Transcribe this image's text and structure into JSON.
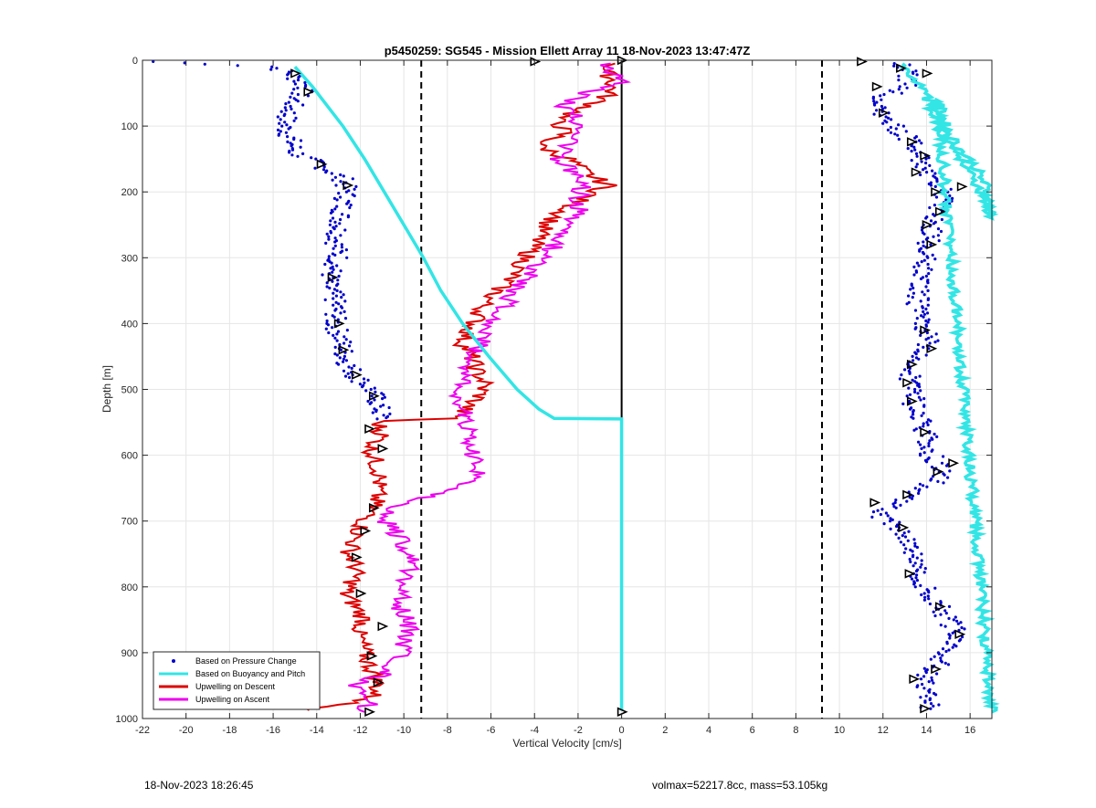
{
  "chart_data": {
    "type": "scatter",
    "title": "p5450259: SG545 - Mission Ellett Array 11 18-Nov-2023 13:47:47Z",
    "xlabel": "Vertical Velocity [cm/s]",
    "ylabel": "Depth [m]",
    "xlim": [
      -22,
      17
    ],
    "ylim": [
      0,
      1000
    ],
    "y_reversed": true,
    "grid": true,
    "x_ticks": [
      -22,
      -20,
      -18,
      -16,
      -14,
      -12,
      -10,
      -8,
      -6,
      -4,
      -2,
      0,
      2,
      4,
      6,
      8,
      10,
      12,
      14,
      16
    ],
    "y_ticks": [
      0,
      100,
      200,
      300,
      400,
      500,
      600,
      700,
      800,
      900,
      1000
    ],
    "reference_lines": [
      {
        "x": -9.2,
        "style": "dashed",
        "color": "#000000"
      },
      {
        "x": 9.2,
        "style": "dashed",
        "color": "#000000"
      },
      {
        "x": 0,
        "style": "solid",
        "color": "#000000",
        "y_range": [
          0,
          545
        ]
      }
    ],
    "legend_position": "bottom-left",
    "series": [
      {
        "name": "Based on Pressure Change",
        "style": "dots",
        "color": "#0000cc",
        "descent": {
          "depth": [
            2,
            10,
            20,
            40,
            60,
            80,
            100,
            120,
            140,
            160,
            180,
            200,
            220,
            240,
            260,
            280,
            300,
            320,
            340,
            360,
            380,
            400,
            420,
            440,
            460,
            480,
            500,
            520,
            545
          ],
          "velocity": [
            -21.5,
            -16,
            -15.2,
            -14.5,
            -15,
            -15.3,
            -15.5,
            -15.2,
            -15,
            -13.8,
            -12.8,
            -12.6,
            -12.8,
            -12.9,
            -13,
            -13.1,
            -13,
            -13.3,
            -13.5,
            -13.2,
            -13.1,
            -13.2,
            -12.9,
            -12.8,
            -12.6,
            -12.2,
            -11.5,
            -11.2,
            -11
          ]
        },
        "ascent": {
          "depth": [
            985,
            960,
            940,
            920,
            900,
            880,
            860,
            840,
            820,
            800,
            780,
            760,
            740,
            720,
            700,
            690,
            680,
            670,
            660,
            640,
            620,
            600,
            580,
            560,
            540,
            520,
            500,
            480,
            460,
            440,
            420,
            400,
            380,
            360,
            340,
            320,
            300,
            280,
            260,
            240,
            220,
            200,
            180,
            160,
            140,
            120,
            100,
            80,
            60,
            40,
            20,
            5
          ],
          "velocity": [
            14.1,
            14.1,
            13.8,
            14.5,
            14.8,
            15.6,
            15.2,
            14.8,
            14.4,
            13.9,
            13.6,
            13.5,
            13.3,
            13.1,
            12.4,
            11.6,
            12.2,
            12.8,
            13.4,
            14.4,
            14.8,
            14.2,
            14.1,
            13.9,
            13.6,
            13.4,
            13.4,
            13.2,
            13.5,
            14,
            14.1,
            13.8,
            13.6,
            13.6,
            13.7,
            13.9,
            14,
            14.1,
            14.2,
            14.3,
            14.6,
            14.9,
            14.2,
            13.8,
            13.6,
            13.2,
            12.5,
            12,
            11.8,
            13,
            13.2,
            12.8
          ]
        }
      },
      {
        "name": "Based on Buoyancy and Pitch",
        "style": "line",
        "color": "#33e5e5",
        "descent": {
          "depth": [
            10,
            40,
            100,
            150,
            200,
            250,
            300,
            350,
            400,
            450,
            500,
            530,
            544,
            545,
            600,
            700,
            800,
            900,
            988
          ],
          "velocity": [
            -15,
            -14.2,
            -12.8,
            -11.8,
            -10.9,
            -10,
            -9.1,
            -8.3,
            -7.3,
            -6.1,
            -4.8,
            -3.8,
            -3.1,
            0,
            0,
            0,
            0,
            0,
            0
          ]
        },
        "ascent": {
          "depth": [
            990,
            60,
            100,
            130,
            160,
            190,
            220,
            240,
            200,
            150,
            100,
            50,
            20,
            5
          ],
          "velocity": [
            17,
            14.5,
            14.9,
            15.4,
            16.2,
            16.7,
            16.9,
            17,
            16.5,
            15.5,
            14.6,
            13.9,
            13.3,
            12.9
          ]
        }
      },
      {
        "name": "Upwelling on Descent",
        "style": "line",
        "color": "#dd0000",
        "depth": [
          5,
          15,
          30,
          50,
          70,
          90,
          110,
          130,
          150,
          170,
          190,
          210,
          230,
          250,
          270,
          290,
          310,
          330,
          350,
          370,
          390,
          410,
          430,
          450,
          470,
          490,
          510,
          530,
          544,
          548,
          570,
          590,
          610,
          630,
          650,
          670,
          690,
          710,
          730,
          750,
          770,
          790,
          810,
          830,
          850,
          870,
          890,
          910,
          930,
          950,
          970,
          988
        ],
        "velocity": [
          -0.3,
          -0.8,
          -0.4,
          -0.5,
          -1.5,
          -3,
          -2.6,
          -3.8,
          -2.4,
          -1.7,
          -0.6,
          -1.8,
          -2.7,
          -3.5,
          -3.8,
          -4.2,
          -4.6,
          -5.1,
          -5.7,
          -6.3,
          -6.6,
          -7,
          -7.3,
          -6.9,
          -6.7,
          -6.3,
          -6.5,
          -7.2,
          -7.6,
          -11.2,
          -11,
          -11.5,
          -11.3,
          -11.1,
          -11.2,
          -11.3,
          -11.6,
          -12,
          -12.3,
          -12.5,
          -12.2,
          -12.3,
          -12.7,
          -12.2,
          -11.8,
          -12.1,
          -11.9,
          -11.7,
          -11.4,
          -11.2,
          -11.5,
          -14.4
        ]
      },
      {
        "name": "Upwelling on Ascent",
        "style": "line",
        "color": "#ee00ee",
        "depth": [
          990,
          970,
          950,
          930,
          910,
          890,
          870,
          850,
          830,
          810,
          790,
          770,
          750,
          730,
          710,
          690,
          670,
          660,
          650,
          630,
          610,
          590,
          570,
          550,
          530,
          510,
          490,
          470,
          450,
          430,
          410,
          390,
          370,
          350,
          330,
          310,
          290,
          270,
          250,
          230,
          210,
          190,
          170,
          150,
          130,
          110,
          90,
          70,
          50,
          30,
          15,
          5
        ],
        "velocity": [
          -11.8,
          -11.5,
          -12.2,
          -10.8,
          -10.3,
          -10,
          -9.8,
          -9.7,
          -10.2,
          -10.1,
          -9.9,
          -9.6,
          -9.8,
          -10,
          -10.6,
          -11,
          -9.6,
          -8.7,
          -7.4,
          -6.5,
          -6.8,
          -7,
          -6.8,
          -7.2,
          -7.3,
          -7.5,
          -7.4,
          -7.1,
          -6.9,
          -6.5,
          -6.3,
          -5.7,
          -5.3,
          -4.9,
          -4.3,
          -3.9,
          -3.3,
          -2.8,
          -2.3,
          -1.9,
          -2,
          -1.8,
          -2.3,
          -2.9,
          -2.5,
          -2.2,
          -1.9,
          -2.7,
          -1.6,
          0.3,
          -0.9,
          -0.5
        ]
      }
    ],
    "markers": {
      "style": "open-triangle",
      "color": "#000000",
      "points": [
        {
          "x": -4,
          "y": 2
        },
        {
          "x": 0,
          "y": 0
        },
        {
          "x": 11,
          "y": 2
        },
        {
          "x": -15,
          "y": 20
        },
        {
          "x": -14.4,
          "y": 48
        },
        {
          "x": -13.8,
          "y": 158
        },
        {
          "x": -12.6,
          "y": 190
        },
        {
          "x": -13.3,
          "y": 330
        },
        {
          "x": -13,
          "y": 400
        },
        {
          "x": -12.8,
          "y": 440
        },
        {
          "x": -12.2,
          "y": 478
        },
        {
          "x": -11.4,
          "y": 510
        },
        {
          "x": -11.6,
          "y": 560
        },
        {
          "x": -11,
          "y": 590
        },
        {
          "x": -11.4,
          "y": 680
        },
        {
          "x": -11.8,
          "y": 715
        },
        {
          "x": -12.2,
          "y": 755
        },
        {
          "x": -12,
          "y": 810
        },
        {
          "x": -11,
          "y": 860
        },
        {
          "x": -11.5,
          "y": 905
        },
        {
          "x": -11.2,
          "y": 945
        },
        {
          "x": -11.6,
          "y": 990
        },
        {
          "x": 0,
          "y": 990
        },
        {
          "x": 13.9,
          "y": 985
        },
        {
          "x": 14.4,
          "y": 925
        },
        {
          "x": 13.4,
          "y": 940
        },
        {
          "x": 15.5,
          "y": 872
        },
        {
          "x": 14.6,
          "y": 830
        },
        {
          "x": 13.2,
          "y": 780
        },
        {
          "x": 12.9,
          "y": 710
        },
        {
          "x": 11.6,
          "y": 672
        },
        {
          "x": 13.1,
          "y": 660
        },
        {
          "x": 15.2,
          "y": 612
        },
        {
          "x": 14.5,
          "y": 625
        },
        {
          "x": 13.9,
          "y": 565
        },
        {
          "x": 13.3,
          "y": 518
        },
        {
          "x": 13.1,
          "y": 490
        },
        {
          "x": 13.3,
          "y": 462
        },
        {
          "x": 14.2,
          "y": 438
        },
        {
          "x": 13.9,
          "y": 410
        },
        {
          "x": 14.2,
          "y": 280
        },
        {
          "x": 14,
          "y": 250
        },
        {
          "x": 14.6,
          "y": 230
        },
        {
          "x": 15.6,
          "y": 192
        },
        {
          "x": 14.4,
          "y": 200
        },
        {
          "x": 13.5,
          "y": 170
        },
        {
          "x": 13.9,
          "y": 145
        },
        {
          "x": 13.3,
          "y": 124
        },
        {
          "x": 12,
          "y": 80
        },
        {
          "x": 11.7,
          "y": 40
        },
        {
          "x": 14,
          "y": 20
        },
        {
          "x": 12.8,
          "y": 12
        }
      ]
    }
  },
  "footer": {
    "left_text": "18-Nov-2023 18:26:45",
    "right_text": "volmax=52217.8cc, mass=53.105kg"
  }
}
